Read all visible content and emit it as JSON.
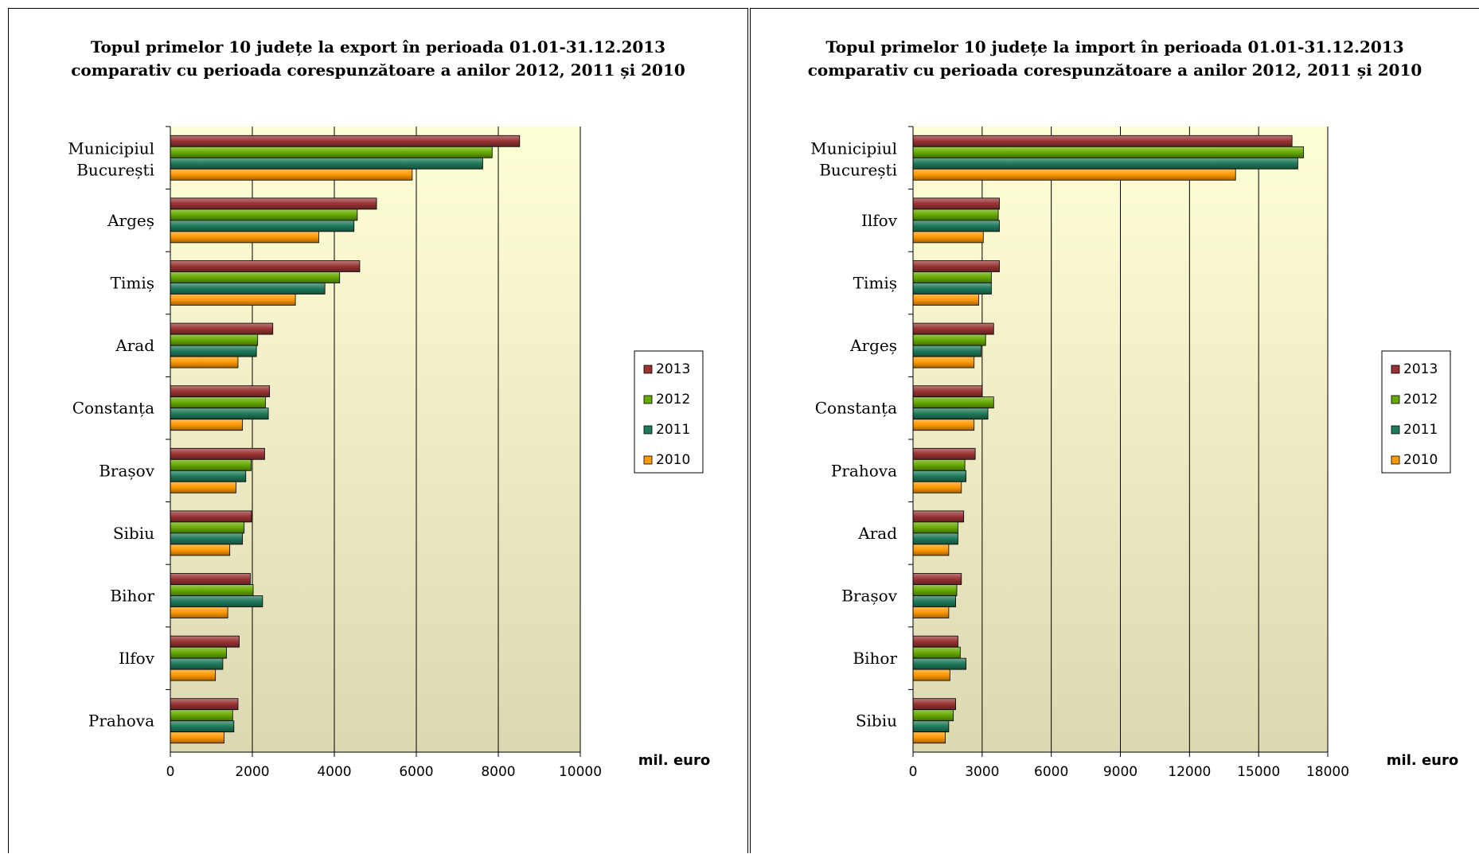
{
  "chart_data": [
    {
      "type": "bar",
      "orientation": "horizontal",
      "title_line1": "Topul primelor 10 județe la export în perioada 01.01-31.12.2013",
      "title_line2": "comparativ cu perioada corespunzătoare a anilor 2012, 2011 și 2010",
      "unit_label": "mil. euro",
      "xlim": [
        0,
        10000
      ],
      "ticks": [
        "0",
        "2000",
        "4000",
        "6000",
        "8000",
        "10000"
      ],
      "tick_values": [
        0,
        2000,
        4000,
        6000,
        8000,
        10000
      ],
      "grid": true,
      "legend_position": "right",
      "categories": [
        "Prahova",
        "Ilfov",
        "Bihor",
        "Sibiu",
        "Brașov",
        "Constanța",
        "Arad",
        "Timiș",
        "Argeș",
        "Municipiul București"
      ],
      "series": [
        {
          "name": "2013",
          "color": "#993333",
          "values": [
            1650,
            1680,
            1950,
            1980,
            2300,
            2420,
            2500,
            4620,
            5030,
            8520
          ]
        },
        {
          "name": "2012",
          "color": "#66aa00",
          "values": [
            1520,
            1370,
            2020,
            1800,
            1970,
            2320,
            2130,
            4130,
            4560,
            7850
          ]
        },
        {
          "name": "2011",
          "color": "#1f7a5a",
          "values": [
            1550,
            1280,
            2250,
            1760,
            1840,
            2390,
            2100,
            3770,
            4480,
            7620
          ]
        },
        {
          "name": "2010",
          "color": "#ff9900",
          "values": [
            1310,
            1100,
            1400,
            1450,
            1600,
            1760,
            1650,
            3050,
            3620,
            5900
          ]
        }
      ]
    },
    {
      "type": "bar",
      "orientation": "horizontal",
      "title_line1": "Topul primelor 10 județe la import în perioada 01.01-31.12.2013",
      "title_line2": "comparativ cu perioada corespunzătoare a anilor 2012, 2011 și 2010",
      "unit_label": "mil. euro",
      "xlim": [
        0,
        18000
      ],
      "ticks": [
        "0",
        "3000",
        "6000",
        "9000",
        "12000",
        "15000",
        "18000"
      ],
      "tick_values": [
        0,
        3000,
        6000,
        9000,
        12000,
        15000,
        18000
      ],
      "grid": true,
      "legend_position": "right",
      "categories": [
        "Sibiu",
        "Bihor",
        "Brașov",
        "Arad",
        "Prahova",
        "Constanța",
        "Argeș",
        "Timiș",
        "Ilfov",
        "Municipiul București"
      ],
      "series": [
        {
          "name": "2013",
          "color": "#993333",
          "values": [
            1850,
            1950,
            2100,
            2200,
            2700,
            3000,
            3500,
            3750,
            3750,
            16450
          ]
        },
        {
          "name": "2012",
          "color": "#66aa00",
          "values": [
            1750,
            2050,
            1900,
            1950,
            2250,
            3500,
            3150,
            3400,
            3700,
            16950
          ]
        },
        {
          "name": "2011",
          "color": "#1f7a5a",
          "values": [
            1550,
            2300,
            1850,
            1950,
            2300,
            3250,
            2950,
            3400,
            3750,
            16700
          ]
        },
        {
          "name": "2010",
          "color": "#ff9900",
          "values": [
            1400,
            1600,
            1550,
            1550,
            2100,
            2650,
            2650,
            2850,
            3050,
            14000
          ]
        }
      ]
    }
  ]
}
